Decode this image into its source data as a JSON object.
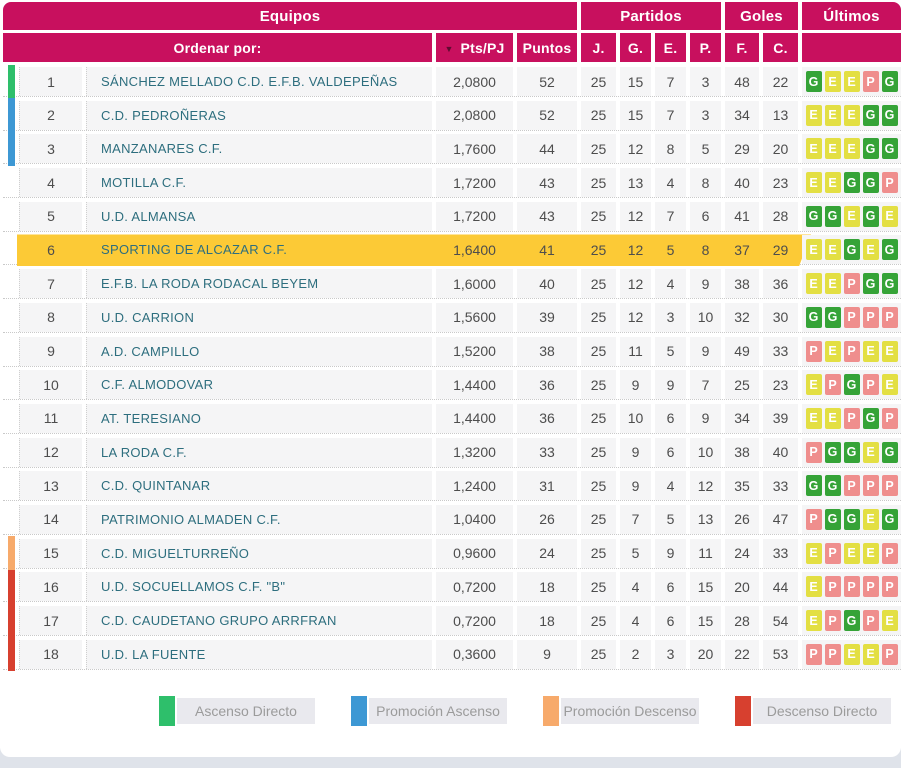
{
  "table": {
    "header": {
      "equipos": "Equipos",
      "partidos": "Partidos",
      "goles": "Goles",
      "ultimos": "Últimos",
      "ordenar_por": "Ordenar por:",
      "sort_arrow": "▼",
      "pts_pj": "Pts/PJ",
      "puntos": "Puntos",
      "j": "J.",
      "g": "G.",
      "e": "E.",
      "p": "P.",
      "f": "F.",
      "c": "C."
    },
    "rows": [
      {
        "pos": 1,
        "team": "SÁNCHEZ MELLADO C.D. E.F.B. VALDEPEÑAS",
        "pts_pj": "2,0800",
        "puntos": 52,
        "j": 25,
        "g": 15,
        "e": 7,
        "p": 3,
        "f": 48,
        "c": 22,
        "zone": "ascenso-directo",
        "highlight": false,
        "last5": [
          "G",
          "E",
          "E",
          "P",
          "G"
        ]
      },
      {
        "pos": 2,
        "team": "C.D. PEDROÑERAS",
        "pts_pj": "2,0800",
        "puntos": 52,
        "j": 25,
        "g": 15,
        "e": 7,
        "p": 3,
        "f": 34,
        "c": 13,
        "zone": "promocion-ascenso",
        "highlight": false,
        "last5": [
          "E",
          "E",
          "E",
          "G",
          "G"
        ]
      },
      {
        "pos": 3,
        "team": "MANZANARES C.F.",
        "pts_pj": "1,7600",
        "puntos": 44,
        "j": 25,
        "g": 12,
        "e": 8,
        "p": 5,
        "f": 29,
        "c": 20,
        "zone": "promocion-ascenso",
        "highlight": false,
        "last5": [
          "E",
          "E",
          "E",
          "G",
          "G"
        ]
      },
      {
        "pos": 4,
        "team": "MOTILLA C.F.",
        "pts_pj": "1,7200",
        "puntos": 43,
        "j": 25,
        "g": 13,
        "e": 4,
        "p": 8,
        "f": 40,
        "c": 23,
        "zone": null,
        "highlight": false,
        "last5": [
          "E",
          "E",
          "G",
          "G",
          "P"
        ]
      },
      {
        "pos": 5,
        "team": "U.D. ALMANSA",
        "pts_pj": "1,7200",
        "puntos": 43,
        "j": 25,
        "g": 12,
        "e": 7,
        "p": 6,
        "f": 41,
        "c": 28,
        "zone": null,
        "highlight": false,
        "last5": [
          "G",
          "G",
          "E",
          "G",
          "E"
        ]
      },
      {
        "pos": 6,
        "team": "SPORTING DE ALCAZAR C.F.",
        "pts_pj": "1,6400",
        "puntos": 41,
        "j": 25,
        "g": 12,
        "e": 5,
        "p": 8,
        "f": 37,
        "c": 29,
        "zone": null,
        "highlight": true,
        "last5": [
          "E",
          "E",
          "G",
          "E",
          "G"
        ]
      },
      {
        "pos": 7,
        "team": "E.F.B. LA RODA RODACAL BEYEM",
        "pts_pj": "1,6000",
        "puntos": 40,
        "j": 25,
        "g": 12,
        "e": 4,
        "p": 9,
        "f": 38,
        "c": 36,
        "zone": null,
        "highlight": false,
        "last5": [
          "E",
          "E",
          "P",
          "G",
          "G"
        ]
      },
      {
        "pos": 8,
        "team": "U.D. CARRION",
        "pts_pj": "1,5600",
        "puntos": 39,
        "j": 25,
        "g": 12,
        "e": 3,
        "p": 10,
        "f": 32,
        "c": 30,
        "zone": null,
        "highlight": false,
        "last5": [
          "G",
          "G",
          "P",
          "P",
          "P"
        ]
      },
      {
        "pos": 9,
        "team": "A.D. CAMPILLO",
        "pts_pj": "1,5200",
        "puntos": 38,
        "j": 25,
        "g": 11,
        "e": 5,
        "p": 9,
        "f": 49,
        "c": 33,
        "zone": null,
        "highlight": false,
        "last5": [
          "P",
          "E",
          "P",
          "E",
          "E"
        ]
      },
      {
        "pos": 10,
        "team": "C.F. ALMODOVAR",
        "pts_pj": "1,4400",
        "puntos": 36,
        "j": 25,
        "g": 9,
        "e": 9,
        "p": 7,
        "f": 25,
        "c": 23,
        "zone": null,
        "highlight": false,
        "last5": [
          "E",
          "P",
          "G",
          "P",
          "E"
        ]
      },
      {
        "pos": 11,
        "team": "AT. TERESIANO",
        "pts_pj": "1,4400",
        "puntos": 36,
        "j": 25,
        "g": 10,
        "e": 6,
        "p": 9,
        "f": 34,
        "c": 39,
        "zone": null,
        "highlight": false,
        "last5": [
          "E",
          "E",
          "P",
          "G",
          "P"
        ]
      },
      {
        "pos": 12,
        "team": "LA RODA C.F.",
        "pts_pj": "1,3200",
        "puntos": 33,
        "j": 25,
        "g": 9,
        "e": 6,
        "p": 10,
        "f": 38,
        "c": 40,
        "zone": null,
        "highlight": false,
        "last5": [
          "P",
          "G",
          "G",
          "E",
          "G"
        ]
      },
      {
        "pos": 13,
        "team": "C.D. QUINTANAR",
        "pts_pj": "1,2400",
        "puntos": 31,
        "j": 25,
        "g": 9,
        "e": 4,
        "p": 12,
        "f": 35,
        "c": 33,
        "zone": null,
        "highlight": false,
        "last5": [
          "G",
          "G",
          "P",
          "P",
          "P"
        ]
      },
      {
        "pos": 14,
        "team": "PATRIMONIO ALMADEN C.F.",
        "pts_pj": "1,0400",
        "puntos": 26,
        "j": 25,
        "g": 7,
        "e": 5,
        "p": 13,
        "f": 26,
        "c": 47,
        "zone": null,
        "highlight": false,
        "last5": [
          "P",
          "G",
          "G",
          "E",
          "G"
        ]
      },
      {
        "pos": 15,
        "team": "C.D. MIGUELTURREÑO",
        "pts_pj": "0,9600",
        "puntos": 24,
        "j": 25,
        "g": 5,
        "e": 9,
        "p": 11,
        "f": 24,
        "c": 33,
        "zone": "promocion-descenso",
        "highlight": false,
        "last5": [
          "E",
          "P",
          "E",
          "E",
          "P"
        ]
      },
      {
        "pos": 16,
        "team": "U.D. SOCUELLAMOS C.F. \"B\"",
        "pts_pj": "0,7200",
        "puntos": 18,
        "j": 25,
        "g": 4,
        "e": 6,
        "p": 15,
        "f": 20,
        "c": 44,
        "zone": "descenso-directo",
        "highlight": false,
        "last5": [
          "E",
          "P",
          "P",
          "P",
          "P"
        ]
      },
      {
        "pos": 17,
        "team": "C.D. CAUDETANO GRUPO ARRFRAN",
        "pts_pj": "0,7200",
        "puntos": 18,
        "j": 25,
        "g": 4,
        "e": 6,
        "p": 15,
        "f": 28,
        "c": 54,
        "zone": "descenso-directo",
        "highlight": false,
        "last5": [
          "E",
          "P",
          "G",
          "P",
          "E"
        ]
      },
      {
        "pos": 18,
        "team": "U.D. LA FUENTE",
        "pts_pj": "0,3600",
        "puntos": 9,
        "j": 25,
        "g": 2,
        "e": 3,
        "p": 20,
        "f": 22,
        "c": 53,
        "zone": "descenso-directo",
        "highlight": false,
        "last5": [
          "P",
          "P",
          "E",
          "E",
          "P"
        ]
      }
    ]
  },
  "legend": {
    "items": [
      {
        "label": "Ascenso Directo",
        "key": "ascenso-directo"
      },
      {
        "label": "Promoción Ascenso",
        "key": "promocion-ascenso"
      },
      {
        "label": "Promoción Descenso",
        "key": "promocion-descenso"
      },
      {
        "label": "Descenso Directo",
        "key": "descenso-directo"
      }
    ]
  },
  "colors": {
    "header_bg": "#c8105e",
    "highlight_row": "#fcca36",
    "row_bg": "#f5f5f6",
    "team_text": "#2d6e7e",
    "number_text": "#4d4d4d",
    "zones": {
      "ascenso-directo": "#2ebf6b",
      "promocion-ascenso": "#3d98d4",
      "promocion-descenso": "#f7aa6b",
      "descenso-directo": "#d7402f"
    },
    "results": {
      "G": "#35a337",
      "E": "#e3df43",
      "P": "#ef8e8d"
    },
    "legend_label_bg": "#e9e9ee",
    "bottom_strip": "#dfe3ea"
  }
}
